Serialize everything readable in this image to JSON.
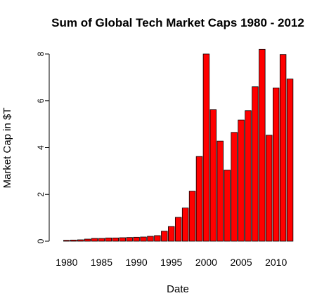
{
  "chart_data": {
    "type": "bar",
    "title": "Sum of Global Tech Market Caps 1980 - 2012",
    "xlabel": "Date",
    "ylabel": "Market Cap in $T",
    "ylim": [
      0,
      8.25
    ],
    "y_ticks": [
      0,
      2,
      4,
      6,
      8
    ],
    "x_tick_labels": [
      "1980",
      "1985",
      "1990",
      "1995",
      "2000",
      "2005",
      "2010"
    ],
    "bar_color": "#ff0000",
    "grid": false,
    "categories": [
      1980,
      1981,
      1982,
      1983,
      1984,
      1985,
      1986,
      1987,
      1988,
      1989,
      1990,
      1991,
      1992,
      1993,
      1994,
      1995,
      1996,
      1997,
      1998,
      1999,
      2000,
      2001,
      2002,
      2003,
      2004,
      2005,
      2006,
      2007,
      2008,
      2009,
      2010,
      2011,
      2012
    ],
    "values": [
      0.04,
      0.05,
      0.06,
      0.09,
      0.12,
      0.12,
      0.14,
      0.14,
      0.15,
      0.16,
      0.17,
      0.18,
      0.21,
      0.24,
      0.43,
      0.63,
      1.02,
      1.42,
      2.14,
      3.62,
      8.0,
      5.62,
      4.28,
      3.04,
      4.65,
      5.18,
      5.58,
      6.6,
      8.2,
      4.53,
      6.55,
      7.98,
      6.93
    ]
  }
}
